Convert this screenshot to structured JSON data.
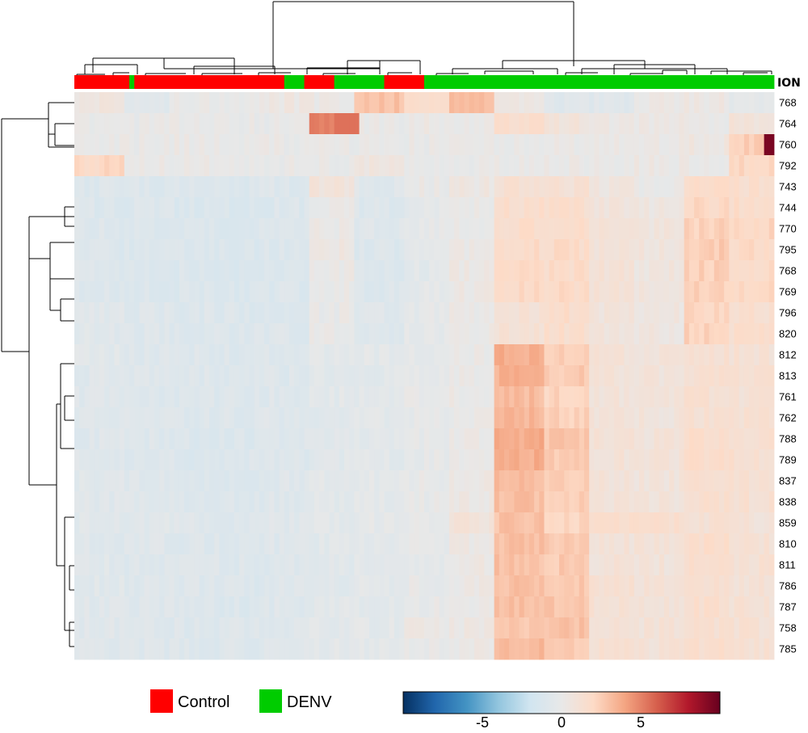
{
  "chart_data": {
    "type": "heatmap",
    "title": "",
    "annotation_label": "ION",
    "rows": [
      "768",
      "764",
      "760",
      "792",
      "743",
      "744",
      "770",
      "795",
      "768",
      "769",
      "796",
      "820",
      "812",
      "813",
      "761",
      "762",
      "788",
      "789",
      "837",
      "838",
      "859",
      "810",
      "811",
      "786",
      "787",
      "758",
      "785"
    ],
    "column_groups": [
      {
        "group": "Control",
        "count": 11
      },
      {
        "group": "DENV",
        "count": 1
      },
      {
        "group": "Control",
        "count": 30
      },
      {
        "group": "DENV",
        "count": 4
      },
      {
        "group": "Control",
        "count": 6
      },
      {
        "group": "DENV",
        "count": 10
      },
      {
        "group": "Control",
        "count": 8
      },
      {
        "group": "DENV",
        "count": 70
      }
    ],
    "block_values": [
      [
        0.6,
        -0.6,
        0.1,
        0.1,
        0.4,
        0.2,
        3.0,
        1.6,
        3.2,
        0.5,
        -0.7,
        -0.7,
        0.2,
        0.3,
        -0.3
      ],
      [
        0.0,
        0.0,
        0.0,
        0.0,
        0.0,
        5.0,
        0.0,
        0.2,
        0.0,
        1.5,
        0.8,
        0.2,
        0.3,
        0.1,
        0.9
      ],
      [
        0.0,
        0.0,
        0.1,
        0.0,
        0.0,
        0.0,
        0.0,
        0.0,
        0.0,
        0.1,
        0.1,
        0.1,
        0.2,
        0.5,
        2.5
      ],
      [
        2.0,
        0.1,
        0.1,
        0.0,
        0.0,
        0.0,
        0.5,
        0.1,
        0.0,
        0.1,
        0.1,
        0.1,
        0.2,
        0.2,
        2.0
      ],
      [
        -1.0,
        -1.0,
        -1.0,
        -1.0,
        -0.9,
        0.8,
        -0.7,
        0.0,
        0.4,
        1.2,
        1.2,
        0.6,
        0.1,
        1.7,
        1.6
      ],
      [
        -1.0,
        -1.0,
        -1.1,
        -1.1,
        -1.0,
        0.1,
        -0.9,
        -0.3,
        0.0,
        1.6,
        1.5,
        0.8,
        0.5,
        2.0,
        1.8
      ],
      [
        -0.9,
        -1.0,
        -1.0,
        -1.0,
        -0.9,
        0.1,
        -0.8,
        -0.2,
        0.1,
        1.7,
        1.6,
        0.9,
        0.7,
        2.3,
        2.1
      ],
      [
        -1.0,
        -1.0,
        -1.1,
        -1.1,
        -1.0,
        0.4,
        -1.0,
        -0.5,
        0.1,
        1.8,
        1.8,
        1.0,
        0.7,
        2.6,
        1.9
      ],
      [
        -0.9,
        -1.0,
        -1.1,
        -1.1,
        -1.1,
        0.1,
        -1.0,
        -0.5,
        0.3,
        2.0,
        1.8,
        1.0,
        0.6,
        2.4,
        1.9
      ],
      [
        -0.9,
        -1.0,
        -1.1,
        -1.2,
        -1.0,
        0.1,
        -0.9,
        -0.4,
        0.3,
        2.0,
        1.9,
        1.1,
        0.7,
        2.4,
        2.0
      ],
      [
        -0.7,
        -0.8,
        -0.9,
        -1.0,
        -0.9,
        0.0,
        -0.8,
        -0.3,
        0.1,
        1.2,
        1.7,
        0.8,
        0.5,
        2.1,
        1.5
      ],
      [
        -0.7,
        -0.9,
        -1.0,
        -1.0,
        -0.9,
        0.0,
        -0.8,
        -0.3,
        0.2,
        1.1,
        1.6,
        0.8,
        0.5,
        2.3,
        1.6
      ],
      [
        -0.6,
        -0.8,
        -0.9,
        -0.9,
        -0.8,
        -0.4,
        -0.4,
        -0.2,
        0.1,
        3.6,
        2.6,
        1.0,
        0.8,
        1.4,
        1.2
      ],
      [
        -0.7,
        -0.8,
        -0.9,
        -1.0,
        -0.9,
        -0.5,
        -0.5,
        -0.2,
        0.1,
        3.5,
        2.6,
        1.0,
        0.8,
        1.4,
        1.2
      ],
      [
        -0.7,
        -0.8,
        -0.9,
        -0.9,
        -0.8,
        -0.5,
        -0.4,
        -0.1,
        0.1,
        3.2,
        2.2,
        0.9,
        0.8,
        1.3,
        1.1
      ],
      [
        -0.7,
        -0.8,
        -0.9,
        -0.9,
        -0.8,
        -0.6,
        -0.4,
        -0.2,
        0.1,
        3.3,
        2.3,
        0.8,
        0.8,
        1.3,
        1.2
      ],
      [
        -0.8,
        -0.9,
        -1.0,
        -1.0,
        -0.9,
        -0.6,
        -0.5,
        -0.2,
        0.2,
        3.7,
        2.7,
        1.1,
        0.9,
        1.6,
        1.3
      ],
      [
        -0.8,
        -0.9,
        -1.0,
        -1.0,
        -0.9,
        -0.6,
        -0.5,
        -0.2,
        0.2,
        3.7,
        2.6,
        1.0,
        0.9,
        1.6,
        1.4
      ],
      [
        -0.7,
        -0.8,
        -0.9,
        -0.9,
        -0.8,
        -0.5,
        -0.4,
        -0.1,
        0.3,
        3.1,
        2.5,
        0.9,
        0.8,
        1.5,
        1.3
      ],
      [
        -0.7,
        -0.8,
        -0.9,
        -0.9,
        -0.8,
        -0.5,
        -0.4,
        -0.1,
        0.3,
        3.0,
        2.5,
        0.9,
        0.8,
        1.5,
        1.3
      ],
      [
        -0.6,
        -0.7,
        -0.8,
        -0.8,
        -0.7,
        -0.5,
        -0.3,
        0.0,
        0.9,
        2.9,
        2.1,
        1.6,
        1.4,
        1.2,
        1.0
      ],
      [
        -0.7,
        -0.8,
        -0.9,
        -0.9,
        -0.8,
        -0.6,
        -0.4,
        -0.2,
        0.3,
        3.0,
        2.6,
        1.0,
        0.9,
        1.6,
        1.2
      ],
      [
        -0.7,
        -0.8,
        -0.9,
        -0.9,
        -0.8,
        -0.6,
        -0.4,
        -0.2,
        0.3,
        3.0,
        2.6,
        1.0,
        0.9,
        1.6,
        1.2
      ],
      [
        -0.7,
        -0.8,
        -0.9,
        -1.0,
        -0.8,
        -0.6,
        -0.4,
        -0.1,
        0.2,
        3.0,
        2.7,
        1.3,
        1.0,
        1.5,
        1.1
      ],
      [
        -0.7,
        -0.8,
        -0.9,
        -1.0,
        -0.8,
        -0.6,
        -0.4,
        -0.1,
        0.2,
        3.1,
        2.8,
        1.3,
        1.0,
        1.6,
        1.2
      ],
      [
        -0.7,
        -0.8,
        -0.9,
        -0.9,
        -0.8,
        -0.5,
        -0.4,
        0.2,
        0.3,
        2.8,
        2.9,
        1.2,
        1.0,
        1.4,
        1.2
      ],
      [
        -0.7,
        -0.8,
        -0.9,
        -0.9,
        -0.8,
        -0.5,
        -0.4,
        -0.1,
        0.2,
        3.3,
        2.6,
        1.2,
        1.0,
        1.5,
        1.3
      ]
    ],
    "legend": {
      "placement": "bottom-left",
      "items": [
        {
          "label": "Control",
          "color": "#ff0000"
        },
        {
          "label": "DENV",
          "color": "#00cc00"
        }
      ]
    },
    "colorbar": {
      "placement": "bottom-center",
      "range": [
        -10,
        10
      ],
      "ticks": [
        -5,
        0,
        5
      ],
      "tick_labels": [
        "-5",
        "0",
        "5"
      ],
      "colors": [
        "#053061",
        "#2166ac",
        "#4393c3",
        "#92c5de",
        "#d1e5f0",
        "#e8e8e8",
        "#fddbc7",
        "#f4a582",
        "#d6604d",
        "#b2182b",
        "#67001f"
      ]
    }
  }
}
